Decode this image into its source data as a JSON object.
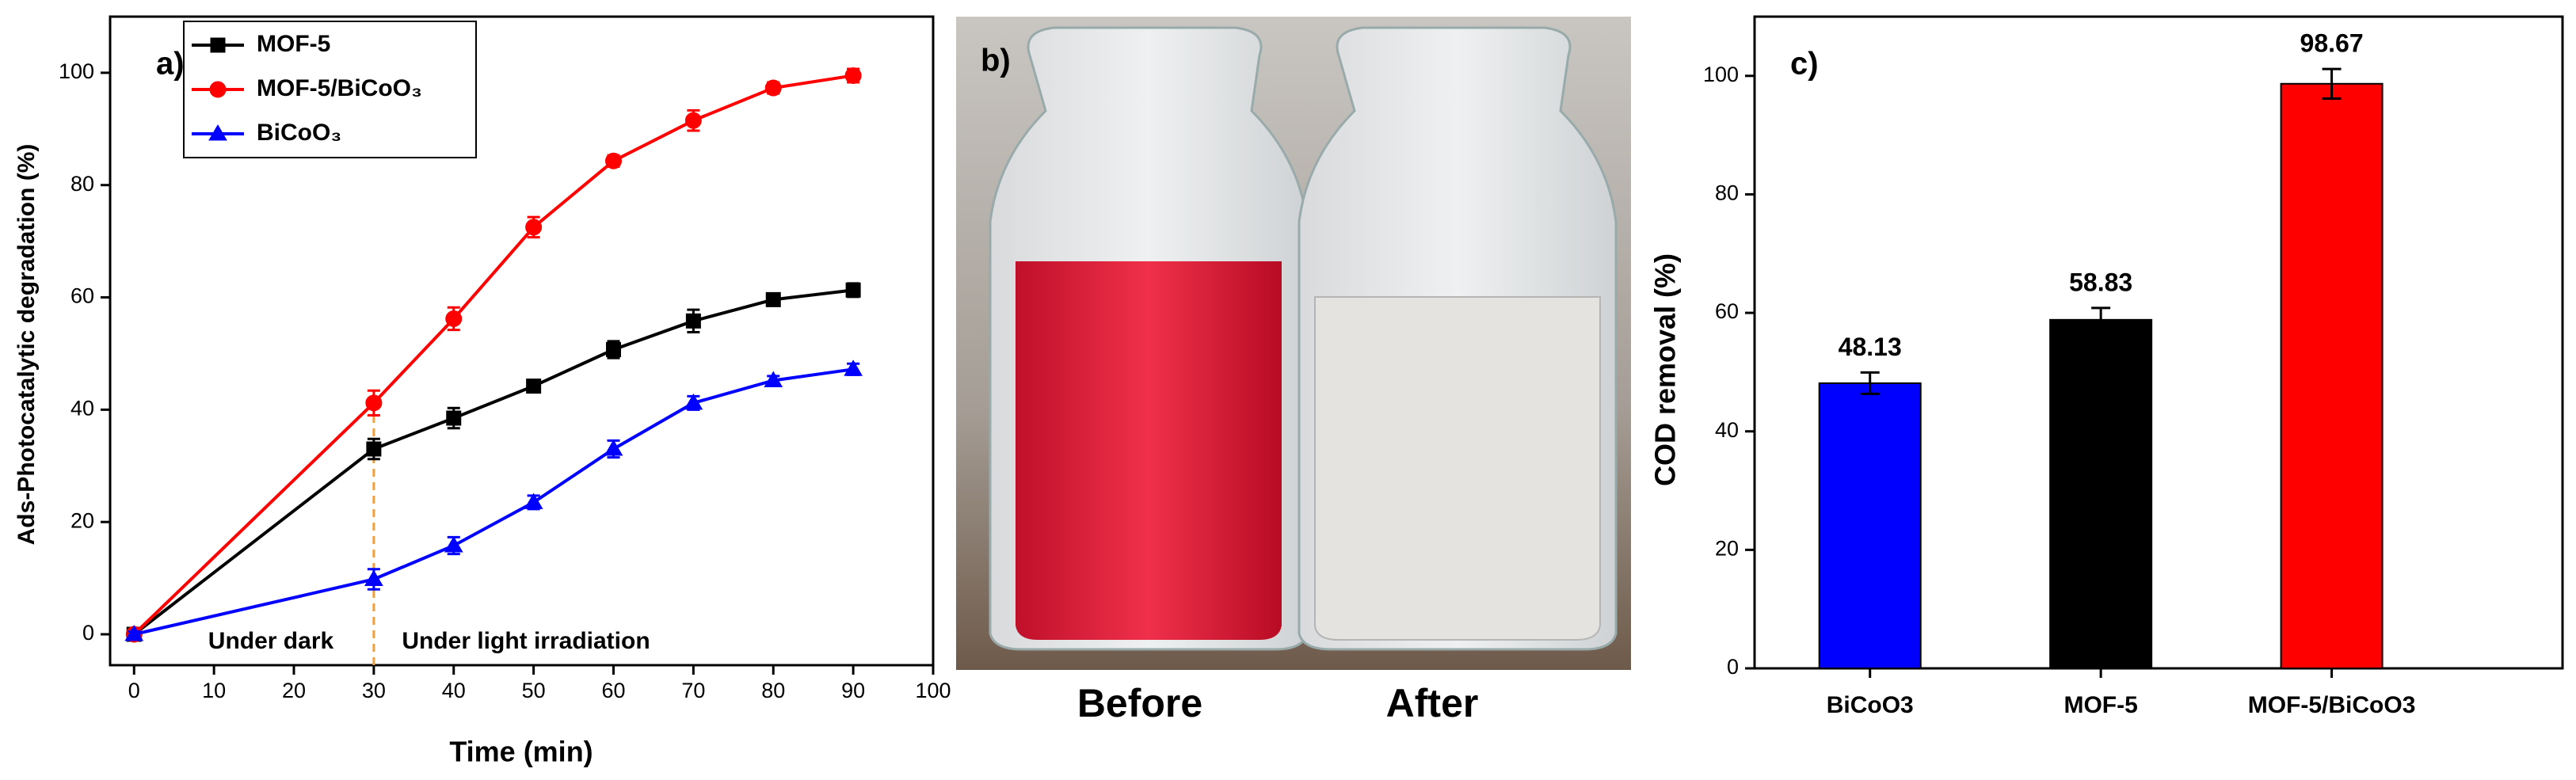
{
  "chart_data": [
    {
      "type": "line",
      "label": "a)",
      "x_label": "Time (min)",
      "y_label": "Ads-Photocatalytic degradation (%)",
      "x": [
        0,
        30,
        40,
        50,
        60,
        70,
        80,
        90
      ],
      "series": [
        {
          "name": "MOF-5",
          "color": "#000000",
          "marker": "square",
          "values": [
            0,
            33,
            38.5,
            44.2,
            50.7,
            55.8,
            59.6,
            61.3
          ],
          "errors": [
            0.5,
            1.8,
            1.8,
            1.0,
            1.5,
            2.0,
            0.8,
            1.2
          ]
        },
        {
          "name": "MOF-5/BiCoO₃",
          "color": "#ff0000",
          "marker": "circle",
          "values": [
            0,
            41.2,
            56.2,
            72.5,
            84.3,
            91.5,
            97.3,
            99.5
          ],
          "errors": [
            0.5,
            2.2,
            2.0,
            1.8,
            1.0,
            1.8,
            1.0,
            1.2
          ]
        },
        {
          "name": "BiCoO₃",
          "color": "#0000ff",
          "marker": "triangle",
          "values": [
            0,
            9.8,
            15.8,
            23.5,
            33,
            41.2,
            45.2,
            47.2
          ],
          "errors": [
            0.5,
            1.8,
            1.5,
            1.2,
            1.5,
            1.2,
            0.8,
            1.0
          ]
        }
      ],
      "annotations": [
        "Under dark",
        "Under light irradiation"
      ],
      "xlim": [
        -3,
        100
      ],
      "ylim": [
        -5.5,
        110
      ],
      "xticks": [
        0,
        10,
        20,
        30,
        40,
        50,
        60,
        70,
        80,
        90,
        100
      ],
      "yticks": [
        0,
        20,
        40,
        60,
        80,
        100
      ],
      "legend": "upper left"
    },
    {
      "type": "bar",
      "label": "c)",
      "y_label": "COD removal (%)",
      "categories": [
        "BiCoO3",
        "MOF-5",
        "MOF-5/BiCoO3"
      ],
      "values": [
        48.13,
        58.83,
        98.67
      ],
      "errors": [
        1.8,
        2.0,
        2.5
      ],
      "colors": [
        "#0000ff",
        "#000000",
        "#ff0000"
      ],
      "ylim": [
        0,
        110
      ],
      "yticks": [
        0,
        20,
        40,
        60,
        80,
        100
      ]
    }
  ],
  "photo": {
    "label": "b)",
    "captions": [
      "Before",
      "After"
    ]
  }
}
